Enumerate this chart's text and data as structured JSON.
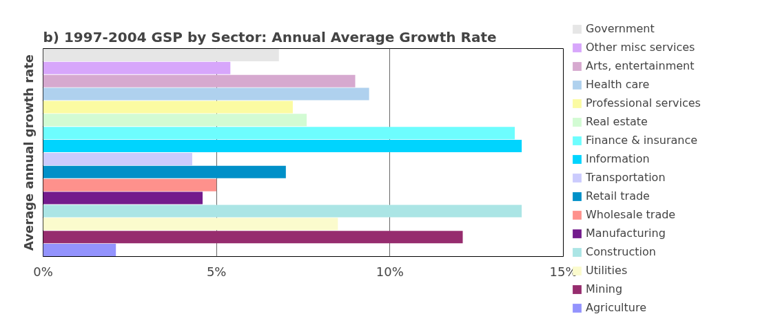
{
  "chart_data": {
    "type": "bar",
    "orientation": "horizontal",
    "title": "b)   1997-2004 GSP by Sector: Annual Average Growth Rate",
    "ylabel": "Average annual growth rate",
    "categories": [
      null,
      null,
      null,
      null,
      null,
      null,
      null,
      null,
      null,
      null,
      null,
      null,
      null,
      null,
      null,
      null
    ],
    "xlim": [
      0,
      15
    ],
    "xticks": [
      {
        "value": 0,
        "label": "0%"
      },
      {
        "value": 5,
        "label": "5%"
      },
      {
        "value": 10,
        "label": "10%"
      },
      {
        "value": 15,
        "label": "15%"
      }
    ],
    "grid": "x",
    "legend": "right",
    "tick_labels": "x",
    "series": [
      {
        "name": "Government",
        "color": "#e6e6e6",
        "values": [
          6.8,
          null,
          null,
          null,
          null,
          null,
          null,
          null,
          null,
          null,
          null,
          null,
          null,
          null,
          null,
          null
        ]
      },
      {
        "name": "Other misc services",
        "color": "#d7a6fb",
        "values": [
          null,
          5.4,
          null,
          null,
          null,
          null,
          null,
          null,
          null,
          null,
          null,
          null,
          null,
          null,
          null,
          null
        ]
      },
      {
        "name": "Arts, entertainment",
        "color": "#d6a9cf",
        "values": [
          null,
          null,
          9.0,
          null,
          null,
          null,
          null,
          null,
          null,
          null,
          null,
          null,
          null,
          null,
          null,
          null
        ]
      },
      {
        "name": "Health care",
        "color": "#afd1ee",
        "values": [
          null,
          null,
          null,
          9.4,
          null,
          null,
          null,
          null,
          null,
          null,
          null,
          null,
          null,
          null,
          null,
          null
        ]
      },
      {
        "name": "Professional services",
        "color": "#fbfba2",
        "values": [
          null,
          null,
          null,
          null,
          7.2,
          null,
          null,
          null,
          null,
          null,
          null,
          null,
          null,
          null,
          null,
          null
        ]
      },
      {
        "name": "Real estate",
        "color": "#d2fbd3",
        "values": [
          null,
          null,
          null,
          null,
          null,
          7.6,
          null,
          null,
          null,
          null,
          null,
          null,
          null,
          null,
          null,
          null
        ]
      },
      {
        "name": "Finance & insurance",
        "color": "#6dfdfe",
        "values": [
          null,
          null,
          null,
          null,
          null,
          null,
          13.6,
          null,
          null,
          null,
          null,
          null,
          null,
          null,
          null,
          null
        ]
      },
      {
        "name": "Information",
        "color": "#00d4fe",
        "values": [
          null,
          null,
          null,
          null,
          null,
          null,
          null,
          13.8,
          null,
          null,
          null,
          null,
          null,
          null,
          null,
          null
        ]
      },
      {
        "name": "Transportation",
        "color": "#cbcbfd",
        "values": [
          null,
          null,
          null,
          null,
          null,
          null,
          null,
          null,
          4.3,
          null,
          null,
          null,
          null,
          null,
          null,
          null
        ]
      },
      {
        "name": "Retail trade",
        "color": "#0090c8",
        "values": [
          null,
          null,
          null,
          null,
          null,
          null,
          null,
          null,
          null,
          7.0,
          null,
          null,
          null,
          null,
          null,
          null
        ]
      },
      {
        "name": "Wholesale trade",
        "color": "#fe918c",
        "values": [
          null,
          null,
          null,
          null,
          null,
          null,
          null,
          null,
          null,
          null,
          5.0,
          null,
          null,
          null,
          null,
          null
        ]
      },
      {
        "name": "Manufacturing",
        "color": "#731b8c",
        "values": [
          null,
          null,
          null,
          null,
          null,
          null,
          null,
          null,
          null,
          null,
          null,
          4.6,
          null,
          null,
          null,
          null
        ]
      },
      {
        "name": "Construction",
        "color": "#abe5e5",
        "values": [
          null,
          null,
          null,
          null,
          null,
          null,
          null,
          null,
          null,
          null,
          null,
          null,
          13.8,
          null,
          null,
          null
        ]
      },
      {
        "name": "Utilities",
        "color": "#fbfbcd",
        "values": [
          null,
          null,
          null,
          null,
          null,
          null,
          null,
          null,
          null,
          null,
          null,
          null,
          null,
          8.5,
          null,
          null
        ]
      },
      {
        "name": "Mining",
        "color": "#962c6e",
        "values": [
          null,
          null,
          null,
          null,
          null,
          null,
          null,
          null,
          null,
          null,
          null,
          null,
          null,
          null,
          12.1,
          null
        ]
      },
      {
        "name": "Agriculture",
        "color": "#9393fd",
        "values": [
          null,
          null,
          null,
          null,
          null,
          null,
          null,
          null,
          null,
          null,
          null,
          null,
          null,
          null,
          null,
          2.1
        ]
      }
    ]
  }
}
